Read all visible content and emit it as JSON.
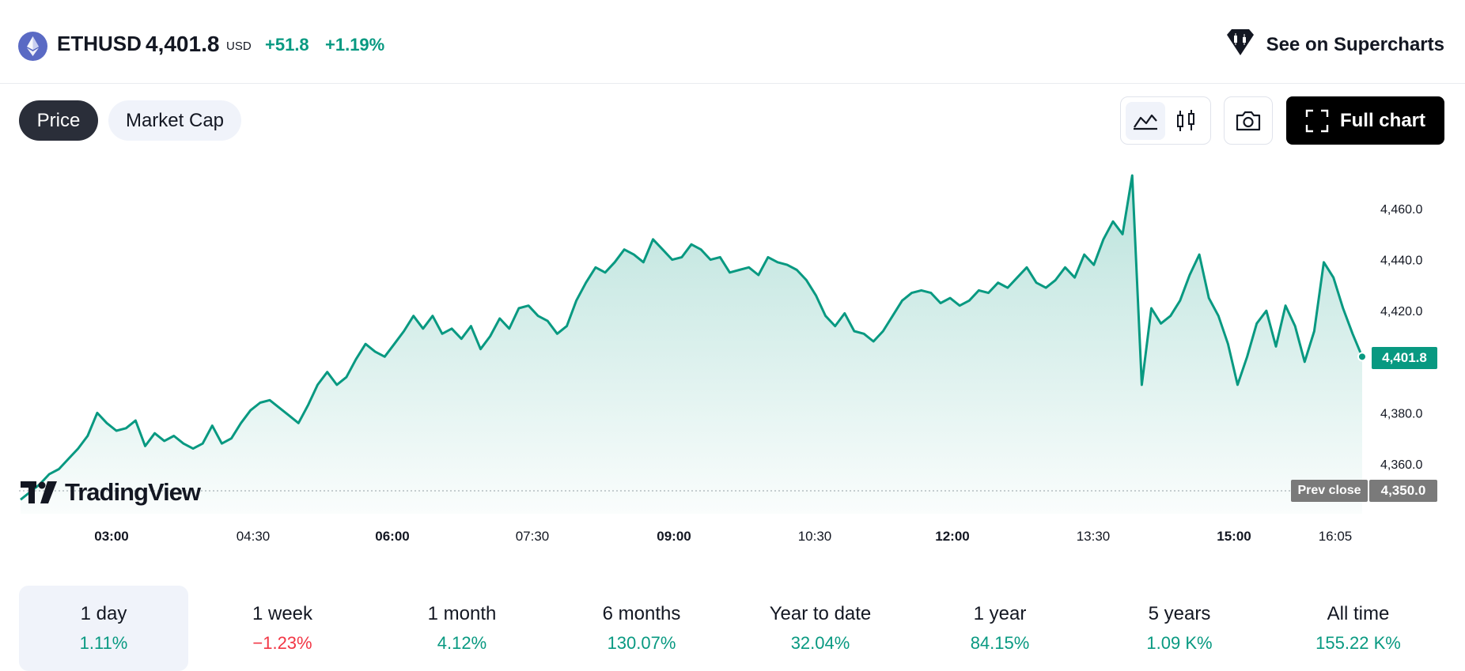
{
  "header": {
    "symbol": "ETHUSD",
    "price": "4,401.8",
    "currency": "USD",
    "change": "+51.8",
    "change_pct": "+1.19%",
    "supercharts_label": "See on Supercharts"
  },
  "toolbar": {
    "tabs": [
      {
        "label": "Price",
        "active": true
      },
      {
        "label": "Market Cap",
        "active": false
      }
    ],
    "chart_types": [
      "line-chart-icon",
      "candles-icon"
    ],
    "snapshot_icon": "camera-icon",
    "full_chart_label": "Full chart"
  },
  "chart_data": {
    "type": "area",
    "x_ticks": [
      "03:00",
      "04:30",
      "06:00",
      "07:30",
      "09:00",
      "10:30",
      "12:00",
      "13:30",
      "15:00",
      "16:05"
    ],
    "y_ticks": [
      "4,460.0",
      "4,440.0",
      "4,420.0",
      "4,400.0",
      "4,380.0",
      "4,360.0"
    ],
    "ylim": [
      4340,
      4466
    ],
    "last_price": "4,401.8",
    "prev_close_label": "Prev close",
    "prev_close": "4,350.0",
    "line_color": "#089981",
    "series": [
      {
        "values": [
          4346,
          4349,
          4352,
          4356,
          4358,
          4362,
          4366,
          4371,
          4380,
          4376,
          4373,
          4374,
          4377,
          4367,
          4372,
          4369,
          4371,
          4368,
          4366,
          4368,
          4375,
          4368,
          4370,
          4376,
          4381,
          4384,
          4385,
          4382,
          4379,
          4376,
          4383,
          4391,
          4396,
          4391,
          4394,
          4401,
          4407,
          4404,
          4402,
          4407,
          4412,
          4418,
          4413,
          4418,
          4411,
          4413,
          4409,
          4414,
          4405,
          4410,
          4417,
          4413,
          4421,
          4422,
          4418,
          4416,
          4411,
          4414,
          4424,
          4431,
          4437,
          4435,
          4439,
          4444,
          4442,
          4439,
          4448,
          4444,
          4440,
          4441,
          4446,
          4444,
          4440,
          4441,
          4435,
          4436,
          4437,
          4434,
          4441,
          4439,
          4438,
          4436,
          4432,
          4426,
          4418,
          4414,
          4419,
          4412,
          4411,
          4408,
          4412,
          4418,
          4424,
          4427,
          4428,
          4427,
          4423,
          4425,
          4422,
          4424,
          4428,
          4427,
          4431,
          4429,
          4433,
          4437,
          4431,
          4429,
          4432,
          4437,
          4433,
          4442,
          4438,
          4448,
          4455,
          4450,
          4473,
          4391,
          4421,
          4415,
          4418,
          4424,
          4434,
          4442,
          4425,
          4418,
          4407,
          4391,
          4402,
          4415,
          4420,
          4406,
          4422,
          4414,
          4400,
          4412,
          4439,
          4433,
          4421,
          4411,
          4402
        ]
      }
    ]
  },
  "periods": [
    {
      "label": "1 day",
      "value": "1.11%",
      "negative": false,
      "active": true
    },
    {
      "label": "1 week",
      "value": "−1.23%",
      "negative": true,
      "active": false
    },
    {
      "label": "1 month",
      "value": "4.12%",
      "negative": false,
      "active": false
    },
    {
      "label": "6 months",
      "value": "130.07%",
      "negative": false,
      "active": false
    },
    {
      "label": "Year to date",
      "value": "32.04%",
      "negative": false,
      "active": false
    },
    {
      "label": "1 year",
      "value": "84.15%",
      "negative": false,
      "active": false
    },
    {
      "label": "5 years",
      "value": "1.09 K%",
      "negative": false,
      "active": false
    },
    {
      "label": "All time",
      "value": "155.22 K%",
      "negative": false,
      "active": false
    }
  ],
  "brand": {
    "wordmark": "TradingView"
  }
}
